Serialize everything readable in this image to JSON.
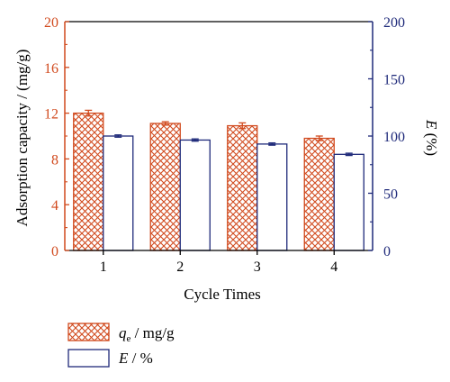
{
  "chart_data": {
    "type": "bar",
    "categories": [
      "1",
      "2",
      "3",
      "4"
    ],
    "xlabel": "Cycle Times",
    "ylabel_left": "Adsorption capacity / (mg/g)",
    "ylabel_right_var": "E",
    "ylabel_right_unit": " (%)",
    "ylim_left": [
      0,
      20
    ],
    "yticks_left": [
      "0",
      "4",
      "8",
      "12",
      "16",
      "20"
    ],
    "ylim_right": [
      0,
      200
    ],
    "yticks_right": [
      "0",
      "50",
      "100",
      "150",
      "200"
    ],
    "grid": false,
    "legend_position": "bottom-left",
    "series": [
      {
        "key": "qe",
        "legend_var": "q",
        "legend_sub": "e",
        "legend_unit": " / mg/g",
        "axis": "left",
        "values": [
          12.0,
          11.1,
          10.9,
          9.8
        ],
        "errors": [
          0.25,
          0.15,
          0.25,
          0.2
        ],
        "pattern": "crosshatch",
        "color": "#d14a1e"
      },
      {
        "key": "E",
        "legend_var": "E",
        "legend_unit": " / %",
        "axis": "right",
        "values": [
          100,
          96.5,
          93,
          84
        ],
        "errors": [
          1.0,
          1.0,
          1.0,
          1.0
        ],
        "pattern": "none",
        "color": "#1f2a7a"
      }
    ],
    "colors": {
      "left_axis": "#d14a1e",
      "right_axis": "#1f2a7a",
      "frame": "#000000"
    }
  }
}
